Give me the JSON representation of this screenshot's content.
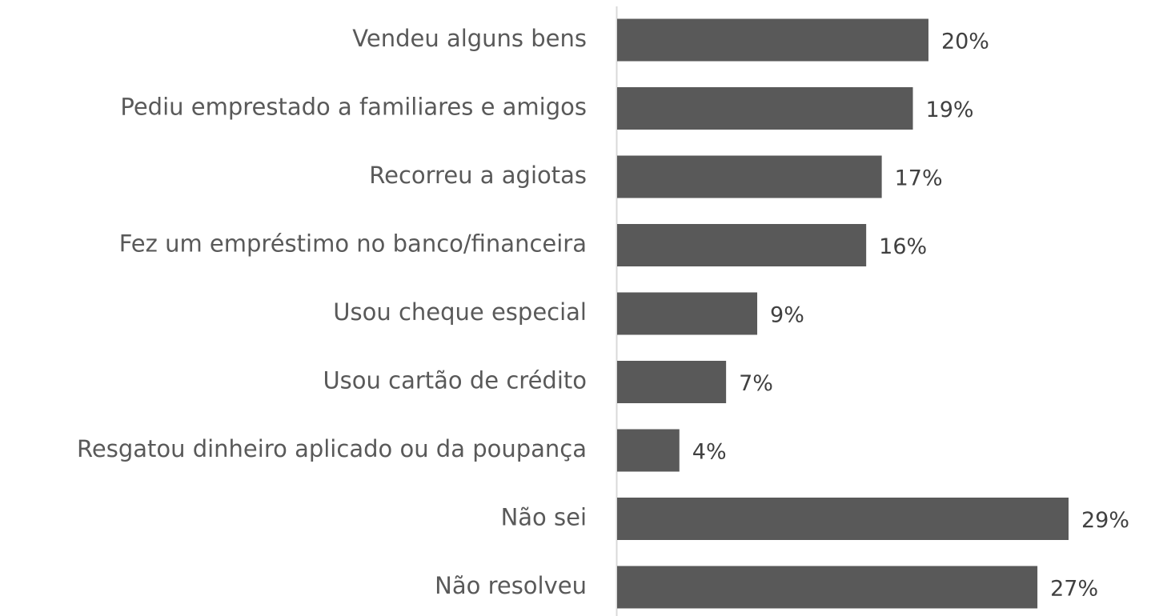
{
  "chart_data": {
    "type": "bar",
    "orientation": "horizontal",
    "color": "#595959",
    "categories": [
      "Vendeu alguns bens",
      "Pediu emprestado a familiares e amigos",
      "Recorreu a agiotas",
      "Fez um empréstimo no banco/financeira",
      "Usou cheque especial",
      "Usou cartão de crédito",
      "Resgatou dinheiro aplicado ou da poupança",
      "Não sei",
      "Não resolveu"
    ],
    "values": [
      20,
      19,
      17,
      16,
      9,
      7,
      4,
      29,
      27
    ],
    "value_labels": [
      "20%",
      "19%",
      "17%",
      "16%",
      "9%",
      "7%",
      "4%",
      "29%",
      "27%"
    ]
  }
}
